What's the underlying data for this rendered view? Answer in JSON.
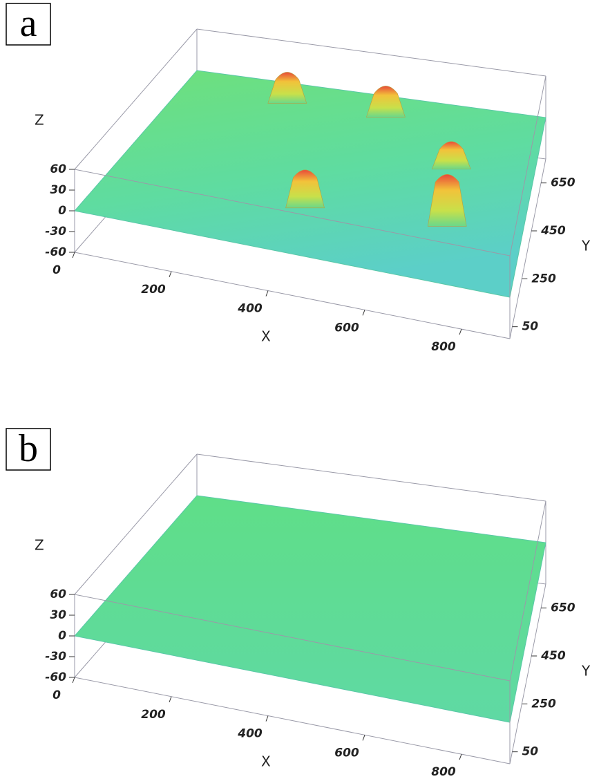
{
  "chart_data": [
    {
      "type": "surface3d",
      "panel_label": "a",
      "xlabel": "X",
      "ylabel": "Y",
      "zlabel": "Z",
      "xlim": [
        0,
        900
      ],
      "ylim": [
        0,
        750
      ],
      "zlim": [
        -60,
        60
      ],
      "xticks": [
        0,
        200,
        400,
        600,
        800
      ],
      "yticks": [
        50,
        250,
        450,
        650
      ],
      "zticks": [
        60,
        30,
        0,
        -30,
        -60
      ],
      "peaks": {
        "x": [
          420,
          730,
          250,
          500,
          700
        ],
        "y": [
          250,
          280,
          700,
          700,
          520
        ],
        "z": [
          40,
          60,
          30,
          30,
          25
        ]
      }
    },
    {
      "type": "surface3d",
      "panel_label": "b",
      "xlabel": "X",
      "ylabel": "Y",
      "zlabel": "Z",
      "xlim": [
        0,
        900
      ],
      "ylim": [
        0,
        750
      ],
      "zlim": [
        -60,
        60
      ],
      "xticks": [
        0,
        200,
        400,
        600,
        800
      ],
      "yticks": [
        50,
        250,
        450,
        650
      ],
      "zticks": [
        60,
        30,
        0,
        -30,
        -60
      ]
    }
  ]
}
